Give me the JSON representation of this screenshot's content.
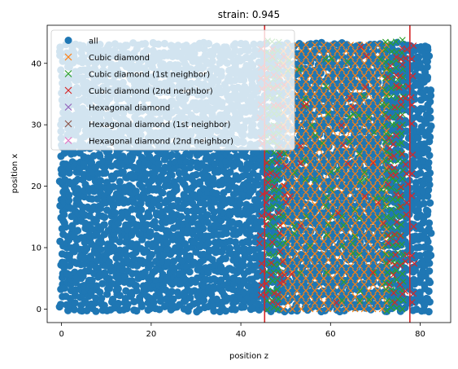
{
  "chart_data": {
    "type": "scatter",
    "title": "strain: 0.945",
    "xlabel": "position z",
    "ylabel": "position x",
    "xlim": [
      -3.2,
      86.8
    ],
    "ylim": [
      -2.2,
      46.2
    ],
    "xticks": [
      0,
      20,
      40,
      60,
      80
    ],
    "yticks": [
      0,
      10,
      20,
      30,
      40
    ],
    "grid": false,
    "legend_position": "top-left",
    "vlines": {
      "color": "#d62728",
      "x": [
        45.3,
        77.7
      ]
    },
    "atoms": {
      "x_min": 0,
      "x_max": 82,
      "y_min": 0,
      "y_max": 43.5
    },
    "series": [
      {
        "name": "all",
        "marker": "circle",
        "color": "#1f77b4"
      },
      {
        "name": "Cubic diamond",
        "marker": "x",
        "color": "#ff7f0e",
        "x_range": [
          49.5,
          71.5
        ],
        "y_range": [
          0,
          43.5
        ]
      },
      {
        "name": "Cubic diamond (1st neighbor)",
        "marker": "x",
        "color": "#2ca02c",
        "x_range": [
          46,
          76
        ],
        "y_range": [
          0,
          43.5
        ]
      },
      {
        "name": "Cubic diamond (2nd neighbor)",
        "marker": "x",
        "color": "#d62728",
        "x_range": [
          44.5,
          79
        ],
        "y_range": [
          1,
          43
        ]
      },
      {
        "name": "Hexagonal diamond",
        "marker": "x",
        "color": "#9467bd"
      },
      {
        "name": "Hexagonal diamond (1st neighbor)",
        "marker": "x",
        "color": "#8c564b"
      },
      {
        "name": "Hexagonal diamond (2nd neighbor)",
        "marker": "x",
        "color": "#e377c2"
      }
    ]
  }
}
